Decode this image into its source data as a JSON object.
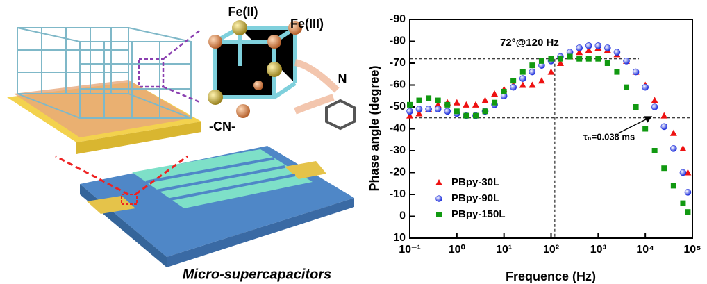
{
  "illustration": {
    "labels": [
      "Fe(II)",
      "Fe(III)",
      "N",
      "-CN-"
    ],
    "caption": "Micro-supercapacitors"
  },
  "chart_data": {
    "type": "scatter",
    "xlabel": "Frequence (Hz)",
    "ylabel": "Phase angle (degree)",
    "log_x": true,
    "xlim": [
      0.1,
      100000
    ],
    "xticks": [
      {
        "value": 0.1,
        "label": "10⁻¹"
      },
      {
        "value": 1,
        "label": "10⁰"
      },
      {
        "value": 10,
        "label": "10¹"
      },
      {
        "value": 100,
        "label": "10²"
      },
      {
        "value": 1000,
        "label": "10³"
      },
      {
        "value": 10000,
        "label": "10⁴"
      },
      {
        "value": 100000,
        "label": "10⁵"
      }
    ],
    "ylim": [
      10,
      -90
    ],
    "yticks": [
      10,
      0,
      -10,
      -20,
      -30,
      -40,
      -50,
      -60,
      -70,
      -80,
      -90
    ],
    "hlines": [
      -72,
      -45
    ],
    "vlines": [
      120
    ],
    "annotations": [
      "72°@120 Hz",
      "τ₀=0.038 ms"
    ],
    "legend": "bottom-left",
    "x": [
      0.1,
      0.158,
      0.251,
      0.398,
      0.631,
      1,
      1.58,
      2.51,
      3.98,
      6.31,
      10,
      15.8,
      25.1,
      39.8,
      63.1,
      100,
      158,
      251,
      398,
      631,
      1000,
      1580,
      2510,
      3980,
      6310,
      10000,
      15800,
      25100,
      39800,
      63100,
      80000
    ],
    "series": [
      {
        "name": "PBpy-30L",
        "color": "#ee1111",
        "marker": "triangle",
        "values": [
          -46,
          -47,
          -49,
          -51,
          -52,
          -52,
          -51,
          -51,
          -53,
          -56,
          -58,
          -60,
          -60,
          -60,
          -62,
          -66,
          -70,
          -73,
          -75,
          -76,
          -77,
          -76,
          -74,
          -71,
          -66,
          -60,
          -53,
          -46,
          -38,
          -31,
          -20
        ]
      },
      {
        "name": "PBpy-90L",
        "color": "#2233dd",
        "marker": "circle",
        "values": [
          -48,
          -49,
          -49,
          -49,
          -48,
          -47,
          -46,
          -46,
          -48,
          -51,
          -55,
          -59,
          -63,
          -66,
          -69,
          -71,
          -73,
          -75,
          -77,
          -78,
          -78,
          -77,
          -75,
          -71,
          -66,
          -59,
          -50,
          -41,
          -31,
          -20,
          -11
        ]
      },
      {
        "name": "PBpy-150L",
        "color": "#119911",
        "marker": "square",
        "values": [
          -51,
          -53,
          -54,
          -53,
          -51,
          -48,
          -46,
          -46,
          -48,
          -52,
          -57,
          -62,
          -66,
          -69,
          -71,
          -72,
          -72,
          -73,
          -72,
          -72,
          -72,
          -70,
          -66,
          -59,
          -50,
          -40,
          -30,
          -22,
          -14,
          -6,
          -2
        ]
      }
    ]
  }
}
